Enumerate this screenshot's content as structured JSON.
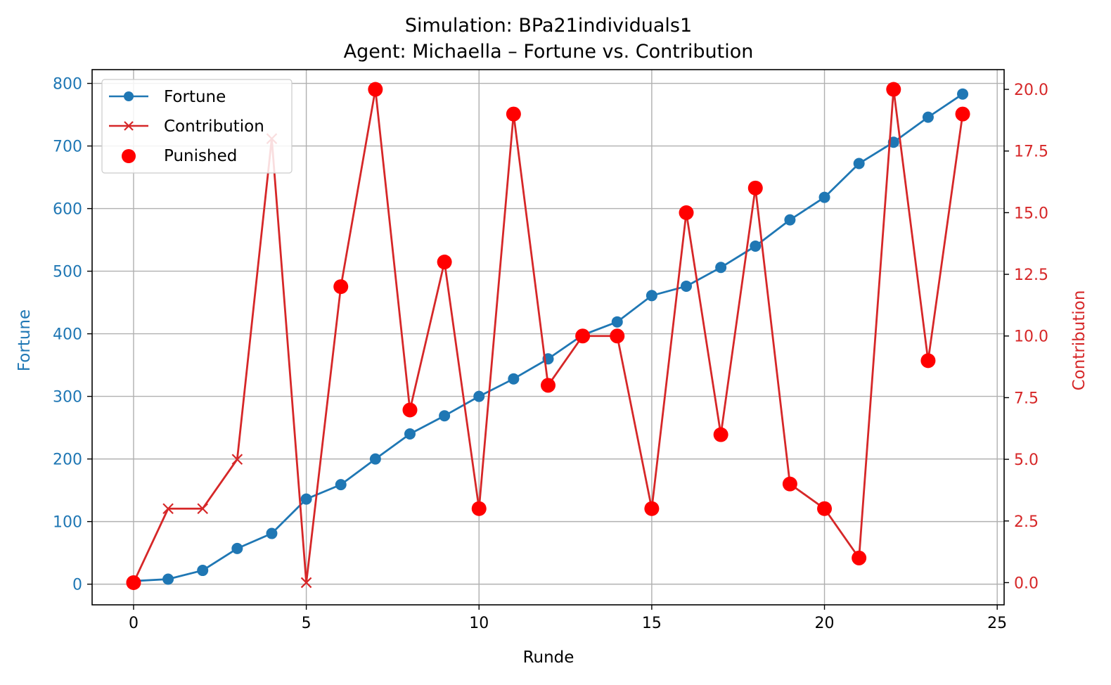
{
  "chart_data": {
    "type": "line",
    "title": "Simulation: BPa21individuals1",
    "subtitle": "Agent: Michaella – Fortune vs. Contribution",
    "xlabel": "Runde",
    "ylabel_left": "Fortune",
    "ylabel_right": "Contribution",
    "xlim": [
      -1.2,
      25.2
    ],
    "ylim_left": [
      -33,
      822
    ],
    "ylim_right": [
      -0.9,
      20.8
    ],
    "x_ticks": [
      0,
      5,
      10,
      15,
      20,
      25
    ],
    "y_left_ticks": [
      0,
      100,
      200,
      300,
      400,
      500,
      600,
      700,
      800
    ],
    "y_right_ticks": [
      0.0,
      2.5,
      5.0,
      7.5,
      10.0,
      12.5,
      15.0,
      17.5,
      20.0
    ],
    "y_right_tick_labels": [
      "0.0",
      "2.5",
      "5.0",
      "7.5",
      "10.0",
      "12.5",
      "15.0",
      "17.5",
      "20.0"
    ],
    "grid": true,
    "legend_position": "top-left",
    "x": [
      0,
      1,
      2,
      3,
      4,
      5,
      6,
      7,
      8,
      9,
      10,
      11,
      12,
      13,
      14,
      15,
      16,
      17,
      18,
      19,
      20,
      21,
      22,
      23,
      24
    ],
    "series": [
      {
        "name": "Fortune",
        "axis": "left",
        "color": "#1f77b4",
        "marker": "circle",
        "values": [
          5,
          8,
          22,
          57,
          81,
          136,
          159,
          200,
          240,
          269,
          300,
          328,
          360,
          398,
          419,
          461,
          476,
          506,
          540,
          582,
          618,
          672,
          706,
          746,
          783
        ]
      },
      {
        "name": "Contribution",
        "axis": "right",
        "color": "#d62728",
        "marker": "x",
        "values": [
          0,
          3,
          3,
          5,
          18,
          0,
          12,
          20,
          7,
          13,
          3,
          19,
          8,
          10,
          10,
          3,
          15,
          6,
          16,
          4,
          3,
          1,
          20,
          9,
          19
        ]
      },
      {
        "name": "Punished",
        "axis": "right",
        "color": "#ff0000",
        "marker": "dot",
        "x": [
          0,
          6,
          7,
          8,
          9,
          10,
          11,
          12,
          13,
          14,
          15,
          16,
          17,
          18,
          19,
          20,
          21,
          22,
          23,
          24
        ],
        "values": [
          0,
          12,
          20,
          7,
          13,
          3,
          19,
          8,
          10,
          10,
          3,
          15,
          6,
          16,
          4,
          3,
          1,
          20,
          9,
          19
        ]
      }
    ]
  }
}
